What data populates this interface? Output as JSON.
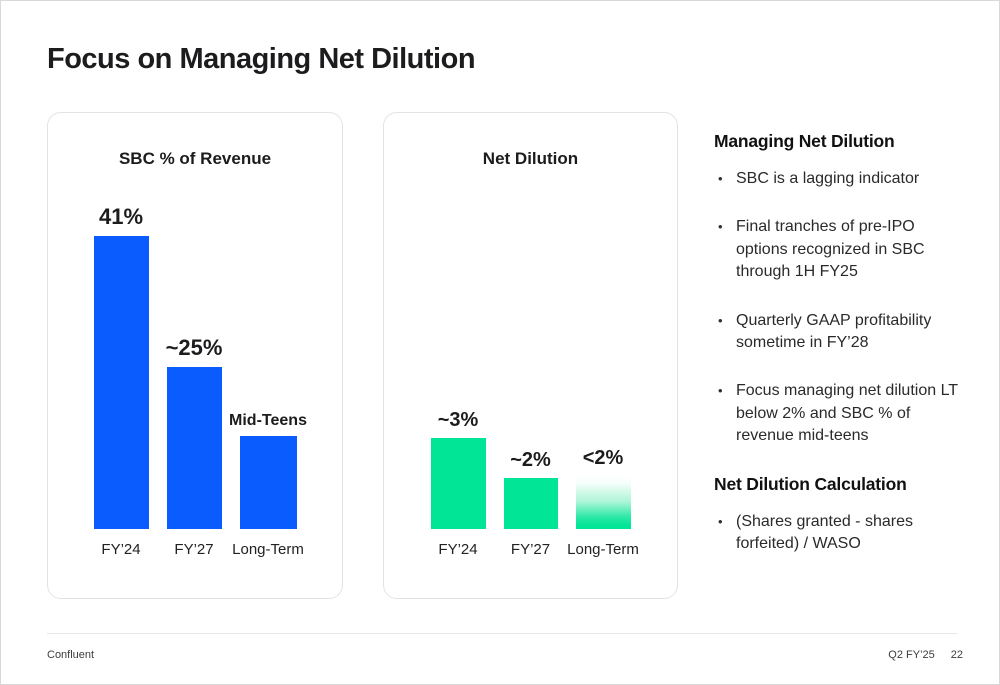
{
  "slide": {
    "title": "Focus on Managing Net Dilution"
  },
  "chart_data": [
    {
      "type": "bar",
      "title": "SBC % of Revenue",
      "categories": [
        "FY’24",
        "FY’27",
        "Long-Term"
      ],
      "values": [
        41,
        25,
        15
      ],
      "value_labels": [
        "41%",
        "~25%",
        "Mid-Teens"
      ],
      "bar_color": "#0b5cff",
      "ylim": [
        0,
        45
      ],
      "grid": false,
      "legend": "none"
    },
    {
      "type": "bar",
      "title": "Net Dilution",
      "categories": [
        "FY’24",
        "FY’27",
        "Long-Term"
      ],
      "values": [
        3,
        2,
        2
      ],
      "value_labels": [
        "~3%",
        "~2%",
        "<2%"
      ],
      "bar_color": "#00e596",
      "fade_bar_index": 2,
      "ylim": [
        0,
        3.5
      ],
      "grid": false,
      "legend": "none"
    }
  ],
  "sidebar": {
    "sections": [
      {
        "heading": "Managing Net Dilution",
        "bullets": [
          "SBC is a lagging indicator",
          "Final tranches of pre-IPO options recognized in SBC through 1H FY25",
          "Quarterly GAAP profitability sometime in FY’28",
          "Focus managing net dilution LT below 2% and SBC % of revenue mid-teens"
        ]
      },
      {
        "heading": "Net Dilution Calculation",
        "bullets": [
          "(Shares granted - shares forfeited) / WASO"
        ]
      }
    ]
  },
  "footer": {
    "company": "Confluent",
    "quarter": "Q2 FY’25",
    "page_number": "22"
  },
  "colors": {
    "bar_blue": "#0b5cff",
    "bar_green": "#00e596",
    "text_dark": "#1c1c1e"
  }
}
